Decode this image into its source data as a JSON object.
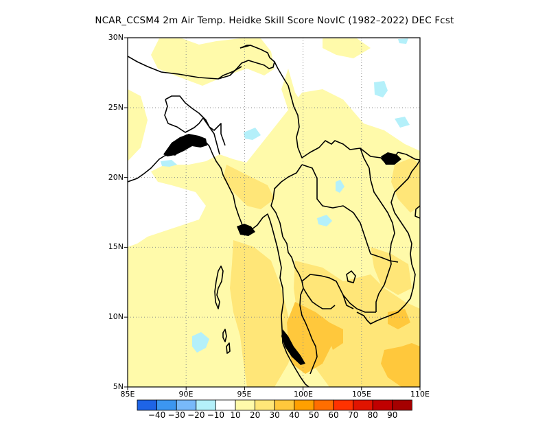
{
  "title": "NCAR_CCSM4  2m Air Temp. Heidke Skill Score NovIC (1982–2022) DEC Fcst",
  "map": {
    "lon_range": [
      85,
      110
    ],
    "lat_range": [
      5,
      30
    ],
    "lon_ticks": [
      {
        "value": 85,
        "label": "85E"
      },
      {
        "value": 90,
        "label": "90E"
      },
      {
        "value": 95,
        "label": "95E"
      },
      {
        "value": 100,
        "label": "100E"
      },
      {
        "value": 105,
        "label": "105E"
      },
      {
        "value": 110,
        "label": "110E"
      }
    ],
    "lat_ticks": [
      {
        "value": 5,
        "label": "5N"
      },
      {
        "value": 10,
        "label": "10N"
      },
      {
        "value": 15,
        "label": "15N"
      },
      {
        "value": 20,
        "label": "20N"
      },
      {
        "value": 25,
        "label": "25N"
      },
      {
        "value": 30,
        "label": "30N"
      }
    ],
    "gridlines": "dotted"
  },
  "colorbar": {
    "colors": [
      "#1e64e6",
      "#3c96f0",
      "#78b9fa",
      "#b4f0fa",
      "#ffffff",
      "#fffaaa",
      "#ffe678",
      "#ffc83c",
      "#ffa000",
      "#ff6e00",
      "#ff3200",
      "#e11400",
      "#c00000",
      "#a50000"
    ],
    "labels": [
      "−40",
      "−30",
      "−20",
      "−10",
      "10",
      "20",
      "30",
      "40",
      "50",
      "60",
      "70",
      "80",
      "90"
    ]
  }
}
